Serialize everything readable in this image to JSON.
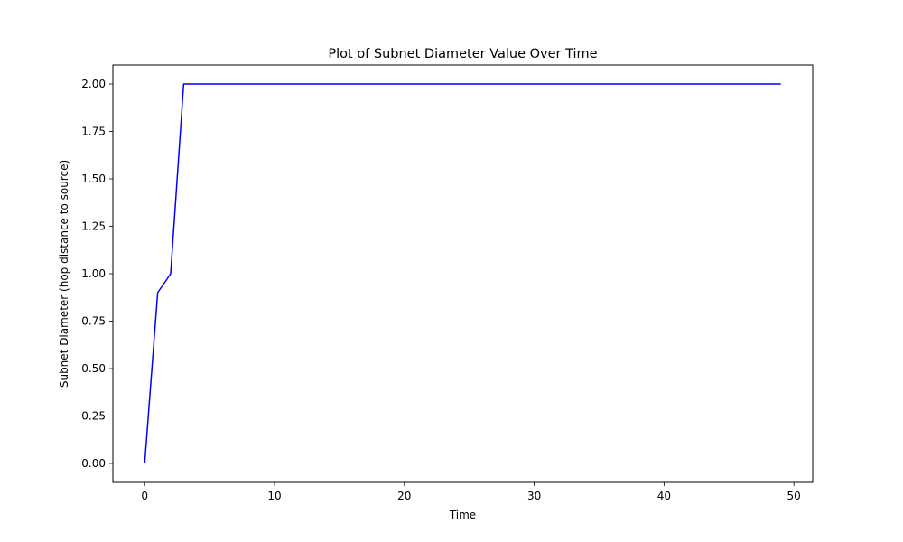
{
  "chart_data": {
    "type": "line",
    "title": "Plot of Subnet Diameter Value Over Time",
    "xlabel": "Time",
    "ylabel": "Subnet Diameter (hop distance to source)",
    "xlim": [
      -2.45,
      51.45
    ],
    "ylim": [
      -0.1,
      2.1
    ],
    "x_ticks": [
      0,
      10,
      20,
      30,
      40,
      50
    ],
    "x_tick_labels": [
      "0",
      "10",
      "20",
      "30",
      "40",
      "50"
    ],
    "y_ticks": [
      0,
      0.25,
      0.5,
      0.75,
      1.0,
      1.25,
      1.5,
      1.75,
      2.0
    ],
    "y_tick_labels": [
      "0.00",
      "0.25",
      "0.50",
      "0.75",
      "1.00",
      "1.25",
      "1.50",
      "1.75",
      "2.00"
    ],
    "grid": false,
    "series": [
      {
        "color": "#0000ff",
        "x": [
          0,
          1,
          2,
          3,
          4,
          5,
          6,
          7,
          8,
          9,
          10,
          11,
          12,
          13,
          14,
          15,
          16,
          17,
          18,
          19,
          20,
          21,
          22,
          23,
          24,
          25,
          26,
          27,
          28,
          29,
          30,
          31,
          32,
          33,
          34,
          35,
          36,
          37,
          38,
          39,
          40,
          41,
          42,
          43,
          44,
          45,
          46,
          47,
          48,
          49
        ],
        "y": [
          0,
          0.9,
          1.0,
          2,
          2,
          2,
          2,
          2,
          2,
          2,
          2,
          2,
          2,
          2,
          2,
          2,
          2,
          2,
          2,
          2,
          2,
          2,
          2,
          2,
          2,
          2,
          2,
          2,
          2,
          2,
          2,
          2,
          2,
          2,
          2,
          2,
          2,
          2,
          2,
          2,
          2,
          2,
          2,
          2,
          2,
          2,
          2,
          2,
          2,
          2
        ]
      }
    ]
  }
}
